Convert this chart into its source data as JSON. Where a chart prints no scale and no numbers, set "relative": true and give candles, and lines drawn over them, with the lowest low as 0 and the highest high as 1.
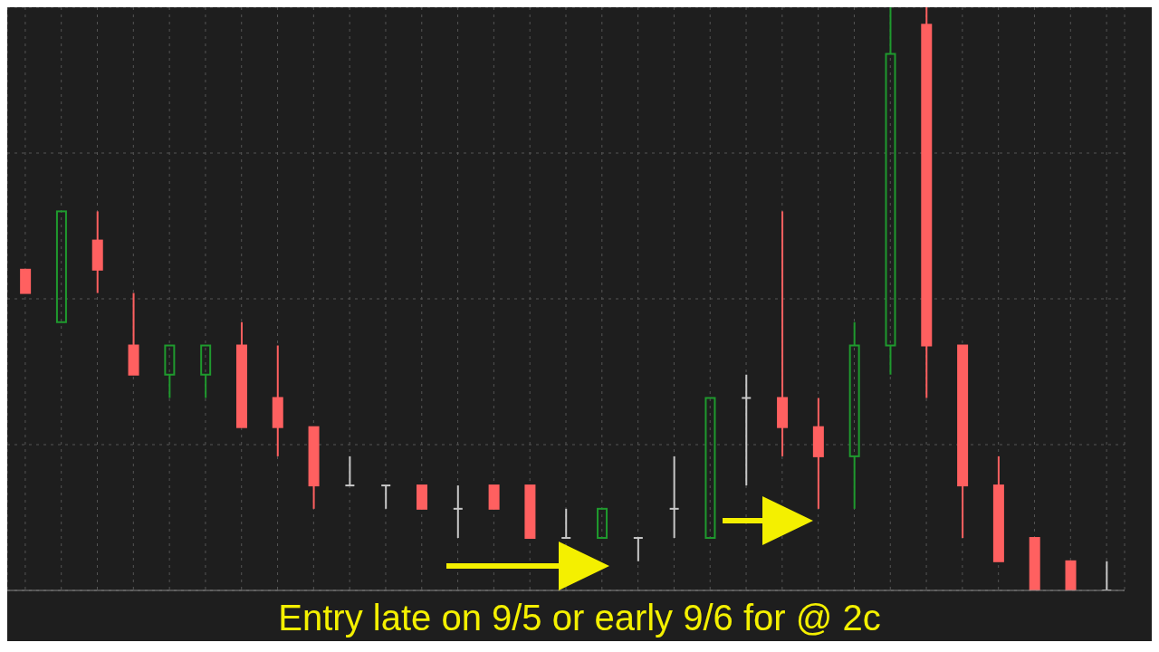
{
  "chart_data": {
    "type": "candlestick",
    "relative": true,
    "grid": true,
    "categories": [
      null,
      null,
      null,
      null,
      null,
      null,
      null,
      null,
      null,
      null,
      null,
      null,
      null,
      null,
      null,
      null,
      null,
      null,
      null,
      null,
      null,
      null,
      null,
      null,
      null,
      null,
      null,
      null,
      null,
      null,
      null
    ],
    "ohlc": [
      [
        0.55,
        0.55,
        0.51,
        0.51
      ],
      [
        0.46,
        0.65,
        0.46,
        0.65
      ],
      [
        0.6,
        0.65,
        0.51,
        0.55
      ],
      [
        0.42,
        0.51,
        0.37,
        0.37
      ],
      [
        0.37,
        0.42,
        0.33,
        0.42
      ],
      [
        0.37,
        0.42,
        0.33,
        0.42
      ],
      [
        0.42,
        0.46,
        0.28,
        0.28
      ],
      [
        0.33,
        0.42,
        0.23,
        0.28
      ],
      [
        0.28,
        0.28,
        0.14,
        0.18
      ],
      [
        0.18,
        0.23,
        0.18,
        0.18
      ],
      [
        0.18,
        0.18,
        0.14,
        0.18
      ],
      [
        0.18,
        0.18,
        0.14,
        0.14
      ],
      [
        0.14,
        0.18,
        0.09,
        0.14
      ],
      [
        0.18,
        0.18,
        0.14,
        0.14
      ],
      [
        0.18,
        0.18,
        0.09,
        0.09
      ],
      [
        0.09,
        0.14,
        0.09,
        0.09
      ],
      [
        0.09,
        0.14,
        0.09,
        0.14
      ],
      [
        0.09,
        0.09,
        0.05,
        0.09
      ],
      [
        0.14,
        0.23,
        0.09,
        0.14
      ],
      [
        0.09,
        0.33,
        0.09,
        0.33
      ],
      [
        0.33,
        0.37,
        0.18,
        0.33
      ],
      [
        0.33,
        0.65,
        0.23,
        0.28
      ],
      [
        0.28,
        0.33,
        0.14,
        0.23
      ],
      [
        0.23,
        0.46,
        0.14,
        0.42
      ],
      [
        0.42,
        1,
        0.37,
        0.92
      ],
      [
        0.97,
        1,
        0.33,
        0.42
      ],
      [
        0.42,
        0.42,
        0.09,
        0.18
      ],
      [
        0.18,
        0.23,
        0.05,
        0.05
      ],
      [
        0.09,
        0.09,
        0,
        0
      ],
      [
        0.05,
        0.05,
        0,
        0
      ],
      [
        0,
        0.05,
        0,
        0
      ]
    ],
    "colors": [
      "#ff6060",
      "#1f9a2e",
      "#ff6060",
      "#ff6060",
      "#1f9a2e",
      "#1f9a2e",
      "#ff6060",
      "#ff6060",
      "#ff6060",
      "#c8c8c8",
      "#c8c8c8",
      "#ff6060",
      "#c8c8c8",
      "#ff6060",
      "#ff6060",
      "#c8c8c8",
      "#1f9a2e",
      "#c8c8c8",
      "#c8c8c8",
      "#1f9a2e",
      "#c8c8c8",
      "#ff6060",
      "#ff6060",
      "#1f9a2e",
      "#1f9a2e",
      "#ff6060",
      "#ff6060",
      "#ff6060",
      "#ff6060",
      "#ff6060",
      "#c8c8c8"
    ],
    "annotations": [
      "Entry late on 9/5 or early 9/6 for @ 2c"
    ]
  }
}
